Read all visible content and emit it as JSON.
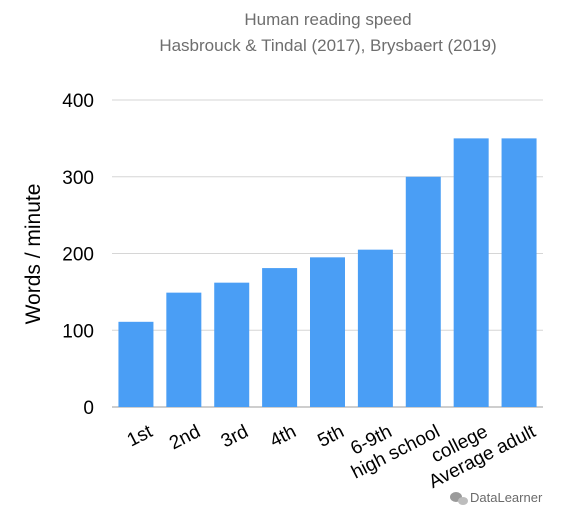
{
  "chart_data": {
    "type": "bar",
    "title": "Human reading speed",
    "subtitle": "Hasbrouck & Tindal (2017), Brysbaert (2019)",
    "xlabel": "",
    "ylabel": "Words / minute",
    "categories": [
      "1st",
      "2nd",
      "3rd",
      "4th",
      "5th",
      "6-9th",
      "high school",
      "college",
      "Average adult"
    ],
    "values": [
      111,
      149,
      162,
      181,
      195,
      205,
      300,
      350,
      350
    ],
    "ylim": [
      0,
      400
    ],
    "yticks": [
      "0",
      "100",
      "200",
      "300",
      "400"
    ],
    "grid": true,
    "bar_color": "#4a9ef5"
  },
  "watermark": {
    "text": "DataLearner",
    "icon": "wechat-icon"
  }
}
